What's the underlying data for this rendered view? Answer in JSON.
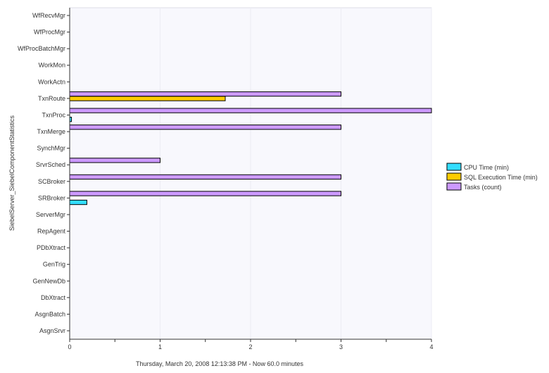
{
  "chart_data": {
    "type": "bar",
    "orientation": "horizontal",
    "ylabel": "SiebelServer_SiebelComponentStatistics",
    "xlabel": "Thursday, March 20, 2008  12:13:38 PM - Now  60.0 minutes",
    "xlim": [
      0,
      4
    ],
    "xticks": [
      "0",
      "1",
      "2",
      "3",
      "4"
    ],
    "grid": true,
    "legend_position": "right",
    "categories": [
      "WfRecvMgr",
      "WfProcMgr",
      "WfProcBatchMgr",
      "WorkMon",
      "WorkActn",
      "TxnRoute",
      "TxnProc",
      "TxnMerge",
      "SynchMgr",
      "SrvrSched",
      "SCBroker",
      "SRBroker",
      "ServerMgr",
      "RepAgent",
      "PDbXtract",
      "GenTrig",
      "GenNewDb",
      "DbXtract",
      "AsgnBatch",
      "AsgnSrvr"
    ],
    "series": [
      {
        "name": "Tasks (count)",
        "color": "#cc99ff",
        "values": [
          0,
          0,
          0,
          0,
          0,
          3,
          4,
          3,
          0,
          1,
          3,
          3,
          0,
          0,
          0,
          0,
          0,
          0,
          0,
          0
        ]
      },
      {
        "name": "SQL Execution Time (min)",
        "color": "#ffcc00",
        "values": [
          0,
          0,
          0,
          0,
          0,
          1.72,
          0,
          0,
          0,
          0,
          0,
          0,
          0,
          0,
          0,
          0,
          0,
          0,
          0,
          0
        ]
      },
      {
        "name": "CPU Time (min)",
        "color": "#33ddff",
        "values": [
          0,
          0,
          0,
          0,
          0,
          0,
          0.02,
          0,
          0,
          0,
          0,
          0.19,
          0,
          0,
          0,
          0,
          0,
          0,
          0,
          0
        ]
      }
    ],
    "legend": [
      "CPU Time (min)",
      "SQL Execution Time (min)",
      "Tasks (count)"
    ]
  }
}
